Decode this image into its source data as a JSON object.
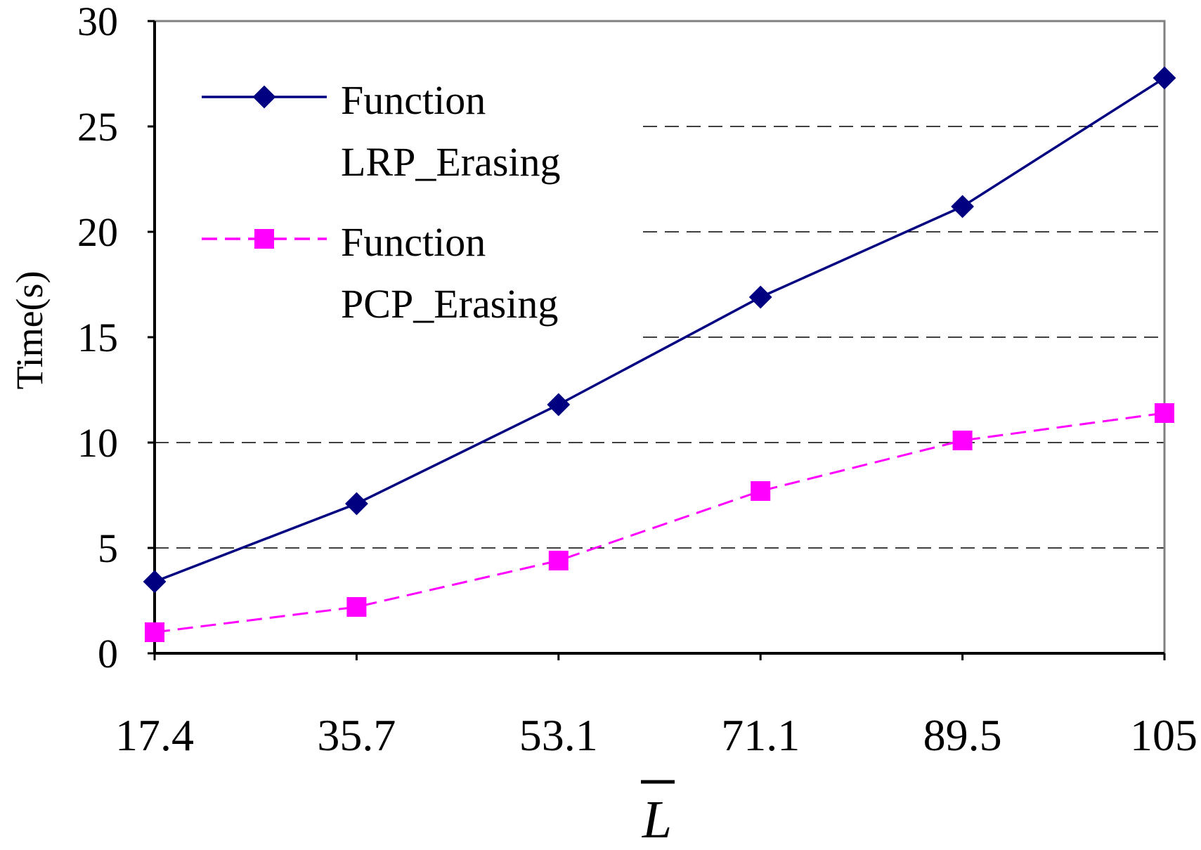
{
  "chart_data": {
    "type": "line",
    "title": "",
    "xlabel": "L",
    "xlabel_overline": true,
    "ylabel": "Time(s)",
    "ylim": [
      0,
      30
    ],
    "yticks": [
      "0",
      "5",
      "10",
      "15",
      "20",
      "25",
      "30"
    ],
    "categories": [
      "17.4",
      "35.7",
      "53.1",
      "71.1",
      "89.5",
      "105"
    ],
    "grid": "horizontal-dashed",
    "legend_position": "top-left",
    "series": [
      {
        "name": "Function LRP_Erasing",
        "name_lines": [
          "Function",
          "LRP_Erasing"
        ],
        "values": [
          3.4,
          7.1,
          11.8,
          16.9,
          21.2,
          27.3
        ],
        "color": "#000080",
        "marker": "diamond",
        "line": "solid"
      },
      {
        "name": "Function PCP_Erasing",
        "name_lines": [
          "Function",
          "PCP_Erasing"
        ],
        "values": [
          1.0,
          2.2,
          4.4,
          7.7,
          10.1,
          11.4
        ],
        "color": "#ff00ff",
        "marker": "square",
        "line": "dashed"
      }
    ]
  }
}
